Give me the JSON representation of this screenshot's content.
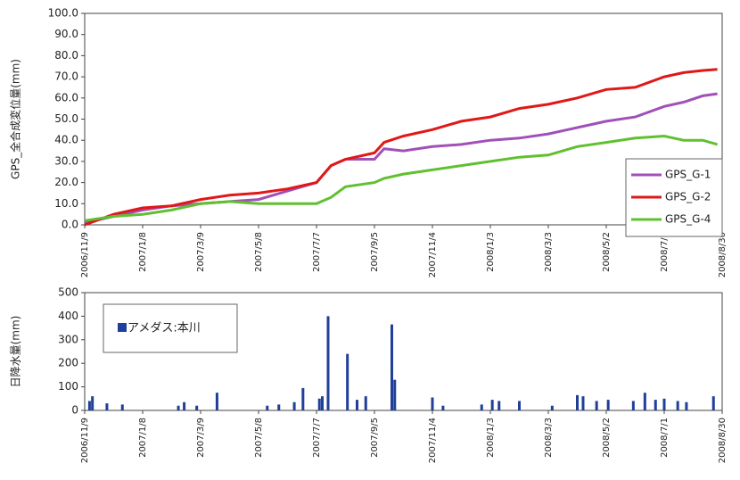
{
  "chart_data": [
    {
      "type": "line",
      "ylabel": "GPS_全合成変位量(mm)",
      "x": [
        "2006/11/9",
        "2006/12/9",
        "2007/1/8",
        "2007/2/7",
        "2007/3/9",
        "2007/4/8",
        "2007/5/8",
        "2007/6/7",
        "2007/7/7",
        "2007/7/22",
        "2007/8/6",
        "2007/9/5",
        "2007/9/15",
        "2007/10/5",
        "2007/11/4",
        "2007/12/4",
        "2008/1/3",
        "2008/2/2",
        "2008/3/3",
        "2008/4/2",
        "2008/5/2",
        "2008/6/1",
        "2008/7/1",
        "2008/7/21",
        "2008/8/10",
        "2008/8/25"
      ],
      "series": [
        {
          "name": "GPS_G-1",
          "color": "#a050b8",
          "values": [
            1,
            4,
            7,
            9,
            10,
            11,
            12,
            16,
            20,
            28,
            31,
            31,
            36,
            35,
            37,
            38,
            40,
            41,
            43,
            46,
            49,
            51,
            56,
            58,
            61,
            62
          ]
        },
        {
          "name": "GPS_G-2",
          "color": "#e01818",
          "values": [
            0,
            5,
            8,
            9,
            12,
            14,
            15,
            17,
            20,
            28,
            31,
            34,
            39,
            42,
            45,
            49,
            51,
            55,
            57,
            60,
            64,
            65,
            70,
            72,
            73,
            73.5
          ]
        },
        {
          "name": "GPS_G-4",
          "color": "#60c030",
          "values": [
            2,
            4,
            5,
            7,
            10,
            11,
            10,
            10,
            10,
            13,
            18,
            20,
            22,
            24,
            26,
            28,
            30,
            32,
            33,
            37,
            39,
            41,
            42,
            40,
            40,
            38
          ]
        }
      ],
      "xlim": [
        "2006/11/9",
        "2008/8/30"
      ],
      "xticks": [
        "2006/11/9",
        "2007/1/8",
        "2007/3/9",
        "2007/5/8",
        "2007/7/7",
        "2007/9/5",
        "2007/11/4",
        "2008/1/3",
        "2008/3/3",
        "2008/5/2",
        "2008/7/1",
        "2008/8/30"
      ],
      "ylim": [
        0,
        100
      ],
      "yticks": [
        {
          "value": 0,
          "label": "0.0"
        },
        {
          "value": 10,
          "label": "10.0"
        },
        {
          "value": 20,
          "label": "20.0"
        },
        {
          "value": 30,
          "label": "30.0"
        },
        {
          "value": 40,
          "label": "40.0"
        },
        {
          "value": 50,
          "label": "50.0"
        },
        {
          "value": 60,
          "label": "60.0"
        },
        {
          "value": 70,
          "label": "70.0"
        },
        {
          "value": 80,
          "label": "80.0"
        },
        {
          "value": 90,
          "label": "90.0"
        },
        {
          "value": 100,
          "label": "100.0"
        }
      ],
      "legend": "lower right"
    },
    {
      "type": "bar",
      "ylabel": "日降水量(mm)",
      "x": [
        "2006/11/14",
        "2006/11/17",
        "2006/12/2",
        "2006/12/18",
        "2007/2/14",
        "2007/2/20",
        "2007/3/5",
        "2007/3/26",
        "2007/5/17",
        "2007/5/29",
        "2007/6/14",
        "2007/6/23",
        "2007/7/10",
        "2007/7/13",
        "2007/7/19",
        "2007/8/8",
        "2007/8/18",
        "2007/8/27",
        "2007/9/23",
        "2007/9/26",
        "2007/11/4",
        "2007/11/15",
        "2007/12/25",
        "2008/1/5",
        "2008/1/12",
        "2008/2/2",
        "2008/3/7",
        "2008/4/2",
        "2008/4/8",
        "2008/4/22",
        "2008/5/4",
        "2008/5/30",
        "2008/6/11",
        "2008/6/22",
        "2008/7/1",
        "2008/7/15",
        "2008/7/24",
        "2008/8/21"
      ],
      "series": [
        {
          "name": "アメダス:本川",
          "color": "#1f3f99",
          "values": [
            40,
            60,
            30,
            25,
            20,
            35,
            20,
            75,
            20,
            25,
            35,
            95,
            50,
            60,
            400,
            240,
            45,
            60,
            365,
            130,
            55,
            20,
            25,
            45,
            40,
            40,
            20,
            65,
            60,
            40,
            45,
            40,
            75,
            45,
            50,
            40,
            35,
            60
          ]
        }
      ],
      "xlim": [
        "2006/11/9",
        "2008/8/30"
      ],
      "xticks": [
        "2006/11/9",
        "2007/1/8",
        "2007/3/9",
        "2007/5/8",
        "2007/7/7",
        "2007/9/5",
        "2007/11/4",
        "2008/1/3",
        "2008/3/3",
        "2008/5/2",
        "2008/7/1",
        "2008/8/30"
      ],
      "ylim": [
        0,
        500
      ],
      "yticks": [
        0,
        100,
        200,
        300,
        400,
        500
      ],
      "legend": "upper left"
    }
  ]
}
